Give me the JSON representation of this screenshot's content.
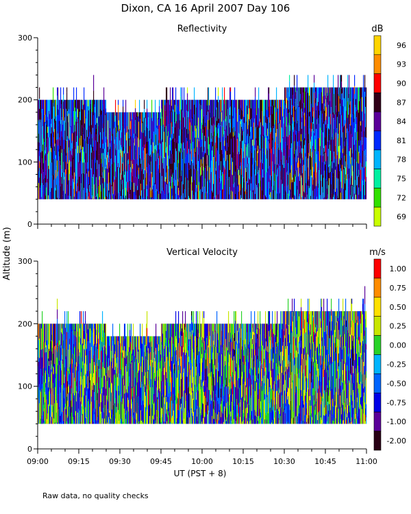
{
  "title": "Dixon, CA 16 April 2007  Day 106",
  "shared_ylabel": "Altitude (m)",
  "shared_xlabel": "UT  (PST + 8)",
  "footnote": "Raw data, no quality checks",
  "chart_data": [
    {
      "type": "heatmap",
      "title": "Reflectivity",
      "unit": "dB",
      "x_range": [
        "09:00",
        "11:00"
      ],
      "x_ticks": [
        "09:00",
        "09:15",
        "09:30",
        "09:45",
        "10:00",
        "10:15",
        "10:30",
        "10:45",
        "11:00"
      ],
      "ylim": [
        0,
        300
      ],
      "y_ticks": [
        0,
        100,
        200,
        300
      ],
      "data_floor_m": 40,
      "data_top_m": [
        {
          "from": "09:00",
          "to": "09:25",
          "top": 200
        },
        {
          "from": "09:25",
          "to": "09:45",
          "top": 180
        },
        {
          "from": "09:45",
          "to": "10:30",
          "top": 200
        },
        {
          "from": "10:30",
          "to": "11:00",
          "top": 220
        }
      ],
      "colorbar": {
        "labels": [
          "96",
          "93",
          "90",
          "87",
          "84",
          "81",
          "78",
          "75",
          "72",
          "69"
        ],
        "colors": [
          "#ffd400",
          "#ff8c00",
          "#ff0000",
          "#300018",
          "#5a0099",
          "#0028ff",
          "#00b4ff",
          "#00f0a0",
          "#30e000",
          "#c8ff00"
        ]
      },
      "dominant_levels": [
        "81",
        "84",
        "87",
        "78"
      ]
    },
    {
      "type": "heatmap",
      "title": "Vertical Velocity",
      "unit": "m/s",
      "x_range": [
        "09:00",
        "11:00"
      ],
      "x_ticks": [
        "09:00",
        "09:15",
        "09:30",
        "09:45",
        "10:00",
        "10:15",
        "10:30",
        "10:45",
        "11:00"
      ],
      "ylim": [
        0,
        300
      ],
      "y_ticks": [
        0,
        100,
        200,
        300
      ],
      "data_floor_m": 40,
      "data_top_m": [
        {
          "from": "09:00",
          "to": "09:25",
          "top": 200
        },
        {
          "from": "09:25",
          "to": "09:45",
          "top": 180
        },
        {
          "from": "09:45",
          "to": "10:30",
          "top": 200
        },
        {
          "from": "10:30",
          "to": "11:00",
          "top": 220
        }
      ],
      "colorbar": {
        "labels": [
          "1.00",
          "0.75",
          "0.50",
          "0.25",
          "0.00",
          "-0.25",
          "-0.50",
          "-0.75",
          "-1.00",
          "-2.00"
        ],
        "colors": [
          "#ff0000",
          "#ff8c00",
          "#ffe000",
          "#c8e600",
          "#28d228",
          "#00b4ff",
          "#0064ff",
          "#0000e6",
          "#5a0099",
          "#280014"
        ]
      },
      "dominant_levels": [
        "-0.75",
        "-0.50",
        "-1.00",
        "0.00",
        "0.25"
      ]
    }
  ]
}
